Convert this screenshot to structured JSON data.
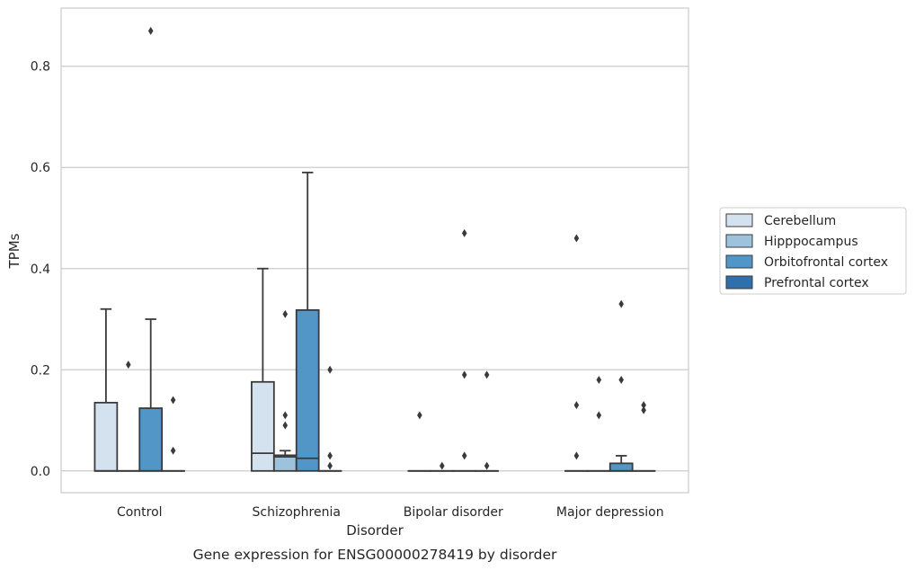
{
  "chart_data": {
    "type": "box",
    "title": "",
    "caption": "Gene expression for ENSG00000278419 by disorder",
    "xlabel": "Disorder",
    "ylabel": "TPMs",
    "ylim": [
      -0.043,
      0.915
    ],
    "yticks": [
      0.0,
      0.2,
      0.4,
      0.6,
      0.8
    ],
    "ytick_labels": [
      "0.0",
      "0.2",
      "0.4",
      "0.6",
      "0.8"
    ],
    "grid": "horizontal",
    "legend_position": "right",
    "categories": [
      "Control",
      "Schizophrenia",
      "Bipolar disorder",
      "Major depression"
    ],
    "series": [
      {
        "name": "Cerebellum",
        "color": "#d4e2f0",
        "boxes": [
          {
            "category": "Control",
            "q1": 0.0,
            "median": 0.0,
            "q3": 0.135,
            "whisker_low": 0.0,
            "whisker_high": 0.32,
            "outliers": []
          },
          {
            "category": "Schizophrenia",
            "q1": 0.0,
            "median": 0.035,
            "q3": 0.176,
            "whisker_low": 0.0,
            "whisker_high": 0.4,
            "outliers": []
          },
          {
            "category": "Bipolar disorder",
            "q1": 0.0,
            "median": 0.0,
            "q3": 0.0,
            "whisker_low": 0.0,
            "whisker_high": 0.0,
            "outliers": [
              0.11
            ]
          },
          {
            "category": "Major depression",
            "q1": 0.0,
            "median": 0.0,
            "q3": 0.0,
            "whisker_low": 0.0,
            "whisker_high": 0.0,
            "outliers": [
              0.46,
              0.13,
              0.03
            ]
          }
        ]
      },
      {
        "name": "Hipppocampus",
        "color": "#9cc2dc",
        "boxes": [
          {
            "category": "Control",
            "q1": 0.0,
            "median": 0.0,
            "q3": 0.0,
            "whisker_low": 0.0,
            "whisker_high": 0.0,
            "outliers": [
              0.21
            ]
          },
          {
            "category": "Schizophrenia",
            "q1": 0.0,
            "median": 0.028,
            "q3": 0.031,
            "whisker_low": 0.0,
            "whisker_high": 0.04,
            "outliers": [
              0.31,
              0.11,
              0.09
            ]
          },
          {
            "category": "Bipolar disorder",
            "q1": 0.0,
            "median": 0.0,
            "q3": 0.0,
            "whisker_low": 0.0,
            "whisker_high": 0.0,
            "outliers": [
              0.01
            ]
          },
          {
            "category": "Major depression",
            "q1": 0.0,
            "median": 0.0,
            "q3": 0.0,
            "whisker_low": 0.0,
            "whisker_high": 0.0,
            "outliers": [
              0.18,
              0.11
            ]
          }
        ]
      },
      {
        "name": "Orbitofrontal cortex",
        "color": "#5196c6",
        "boxes": [
          {
            "category": "Control",
            "q1": 0.0,
            "median": 0.0,
            "q3": 0.124,
            "whisker_low": 0.0,
            "whisker_high": 0.3,
            "outliers": [
              0.87
            ]
          },
          {
            "category": "Schizophrenia",
            "q1": 0.0,
            "median": 0.025,
            "q3": 0.318,
            "whisker_low": 0.0,
            "whisker_high": 0.59,
            "outliers": []
          },
          {
            "category": "Bipolar disorder",
            "q1": 0.0,
            "median": 0.0,
            "q3": 0.0,
            "whisker_low": 0.0,
            "whisker_high": 0.0,
            "outliers": [
              0.47,
              0.19,
              0.03
            ]
          },
          {
            "category": "Major depression",
            "q1": 0.0,
            "median": 0.0,
            "q3": 0.015,
            "whisker_low": 0.0,
            "whisker_high": 0.03,
            "outliers": [
              0.33,
              0.18
            ]
          }
        ]
      },
      {
        "name": "Prefrontal cortex",
        "color": "#2f6fab",
        "boxes": [
          {
            "category": "Control",
            "q1": 0.0,
            "median": 0.0,
            "q3": 0.0,
            "whisker_low": 0.0,
            "whisker_high": 0.0,
            "outliers": [
              0.14,
              0.04
            ]
          },
          {
            "category": "Schizophrenia",
            "q1": 0.0,
            "median": 0.0,
            "q3": 0.0,
            "whisker_low": 0.0,
            "whisker_high": 0.0,
            "outliers": [
              0.2,
              0.03,
              0.01
            ]
          },
          {
            "category": "Bipolar disorder",
            "q1": 0.0,
            "median": 0.0,
            "q3": 0.0,
            "whisker_low": 0.0,
            "whisker_high": 0.0,
            "outliers": [
              0.19,
              0.01
            ]
          },
          {
            "category": "Major depression",
            "q1": 0.0,
            "median": 0.0,
            "q3": 0.0,
            "whisker_low": 0.0,
            "whisker_high": 0.0,
            "outliers": [
              0.13,
              0.12
            ]
          }
        ]
      }
    ],
    "colors": {
      "frame": "#cccccc",
      "grid": "#cccccc",
      "box_edge": "#3a3a3a",
      "outlier": "#3a3a3a"
    }
  }
}
